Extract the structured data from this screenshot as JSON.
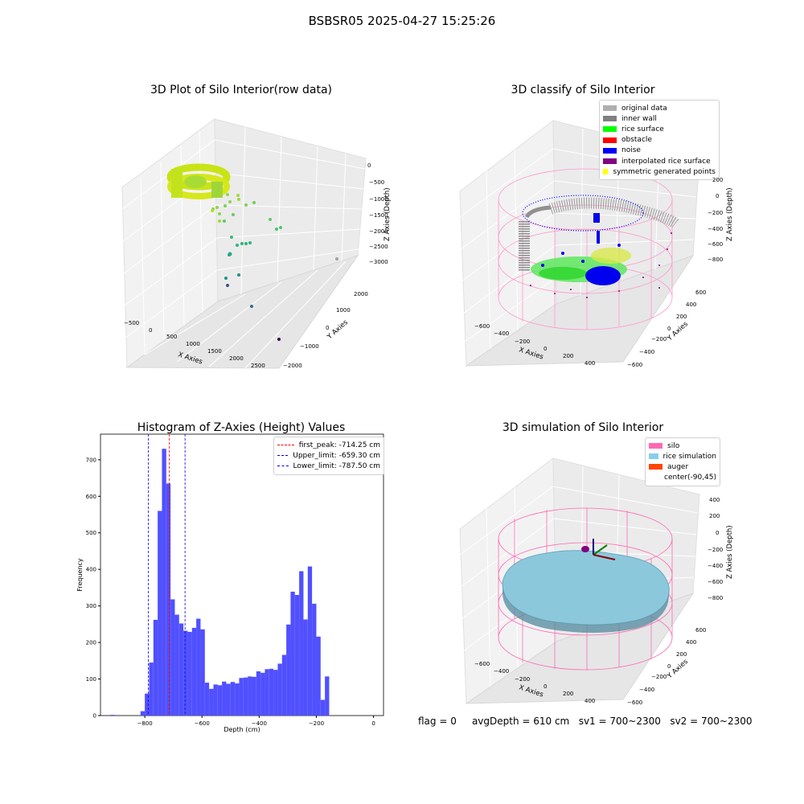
{
  "suptitle": "BSBSR05 2025-04-27 15:25:26",
  "panels": {
    "raw": {
      "title": "3D Plot of Silo Interior(row data)",
      "xlabel": "X Axies",
      "ylabel": "Y Axies",
      "zlabel": "Z Axies (Depth)",
      "xticks": [
        "−500",
        "0",
        "500",
        "1000",
        "1500",
        "2000",
        "2500"
      ],
      "yticks": [
        "2000",
        "1000",
        "0",
        "−1000",
        "−2000"
      ],
      "zticks": [
        "0",
        "−500",
        "−1000",
        "−1500",
        "−2000",
        "−2500",
        "−3000"
      ]
    },
    "classify": {
      "title": "3D classify of Silo Interior",
      "xlabel": "X Axies",
      "ylabel": "Y Axies",
      "zlabel": "Z Axies (Depth)",
      "xticks": [
        "−600",
        "−400",
        "−200",
        "0",
        "200",
        "400"
      ],
      "yticks": [
        "600",
        "400",
        "200",
        "0",
        "−200",
        "−400",
        "−600"
      ],
      "zticks": [
        "200",
        "0",
        "−200",
        "−400",
        "−600",
        "−800"
      ],
      "legend": [
        {
          "label": "original data",
          "color": "#b0b0b0"
        },
        {
          "label": "inner wall",
          "color": "#808080"
        },
        {
          "label": "rice surface",
          "color": "#00ff00"
        },
        {
          "label": "obstacle",
          "color": "#ff0000"
        },
        {
          "label": "noise",
          "color": "#0000ff"
        },
        {
          "label": "interpolated rice surface",
          "color": "#800080"
        },
        {
          "label": "symmetric generated points",
          "color": "#ffff00"
        }
      ]
    },
    "histogram": {
      "title": "Histogram of Z-Axies (Height) Values",
      "legend": [
        {
          "label": "first_peak: -714.25 cm",
          "color": "#ff0000"
        },
        {
          "label": "Upper_limit: -659.30 cm",
          "color": "#0000ff"
        },
        {
          "label": "Lower_limit: -787.50 cm",
          "color": "#0000ff"
        }
      ]
    },
    "simulation": {
      "title": "3D simulation of Silo Interior",
      "xlabel": "X Axies",
      "ylabel": "Y Axies",
      "zlabel": "Z Axies (Depth)",
      "xticks": [
        "−600",
        "−400",
        "−200",
        "0",
        "200",
        "400"
      ],
      "yticks": [
        "600",
        "400",
        "200",
        "0",
        "−200",
        "−400",
        "−600"
      ],
      "zticks": [
        "400",
        "200",
        "0",
        "−200",
        "−400",
        "−600",
        "−800"
      ],
      "legend": [
        {
          "label": "silo",
          "color": "#ff69b4"
        },
        {
          "label": "rice simulation",
          "color": "#87ceeb"
        },
        {
          "label": "auger",
          "color": "#ff4500"
        },
        {
          "label": "center(-90,45)",
          "color": "#ffffff"
        }
      ]
    }
  },
  "footer": {
    "flag": "flag = 0",
    "avg": "avgDepth = 610 cm",
    "sv1": "sv1 = 700~2300",
    "sv2": "sv2 = 700~2300"
  },
  "chart_data": [
    {
      "type": "scatter",
      "title": "3D Plot of Silo Interior(row data)",
      "xlabel": "X Axies",
      "ylabel": "Y Axies",
      "zlabel": "Z Axies (Depth)",
      "xlim": [
        -600,
        2700
      ],
      "ylim": [
        -2100,
        2300
      ],
      "zlim": [
        -3500,
        100
      ],
      "grid": true
    },
    {
      "type": "scatter",
      "title": "3D classify of Silo Interior",
      "xlabel": "X Axies",
      "ylabel": "Y Axies",
      "zlabel": "Z Axies (Depth)",
      "xlim": [
        -700,
        500
      ],
      "ylim": [
        -650,
        650
      ],
      "zlim": [
        -950,
        250
      ],
      "series": [
        {
          "name": "original data"
        },
        {
          "name": "inner wall"
        },
        {
          "name": "rice surface"
        },
        {
          "name": "obstacle"
        },
        {
          "name": "noise"
        },
        {
          "name": "interpolated rice surface"
        },
        {
          "name": "symmetric generated points"
        }
      ],
      "legend": "top-right",
      "grid": true
    },
    {
      "type": "bar",
      "title": "Histogram of Z-Axies (Height) Values",
      "xlabel": "Depth (cm)",
      "ylabel": "Frequency",
      "xlim": [
        -955,
        35
      ],
      "ylim": [
        0,
        770
      ],
      "xticks": [
        -800,
        -600,
        -400,
        -200,
        0
      ],
      "yticks": [
        0,
        100,
        200,
        300,
        400,
        500,
        600,
        700
      ],
      "bin_width": 15,
      "bins": [
        {
          "x": -920,
          "y": 2
        },
        {
          "x": -815,
          "y": 12
        },
        {
          "x": -800,
          "y": 60
        },
        {
          "x": -785,
          "y": 145
        },
        {
          "x": -770,
          "y": 262
        },
        {
          "x": -755,
          "y": 560
        },
        {
          "x": -740,
          "y": 730
        },
        {
          "x": -725,
          "y": 635
        },
        {
          "x": -710,
          "y": 318
        },
        {
          "x": -695,
          "y": 276
        },
        {
          "x": -680,
          "y": 252
        },
        {
          "x": -665,
          "y": 232
        },
        {
          "x": -650,
          "y": 229
        },
        {
          "x": -635,
          "y": 240
        },
        {
          "x": -620,
          "y": 265
        },
        {
          "x": -605,
          "y": 236
        },
        {
          "x": -590,
          "y": 90
        },
        {
          "x": -575,
          "y": 73
        },
        {
          "x": -560,
          "y": 85
        },
        {
          "x": -545,
          "y": 83
        },
        {
          "x": -530,
          "y": 93
        },
        {
          "x": -515,
          "y": 87
        },
        {
          "x": -500,
          "y": 92
        },
        {
          "x": -485,
          "y": 88
        },
        {
          "x": -470,
          "y": 103
        },
        {
          "x": -455,
          "y": 104
        },
        {
          "x": -440,
          "y": 107
        },
        {
          "x": -425,
          "y": 106
        },
        {
          "x": -410,
          "y": 121
        },
        {
          "x": -395,
          "y": 117
        },
        {
          "x": -380,
          "y": 127
        },
        {
          "x": -365,
          "y": 128
        },
        {
          "x": -350,
          "y": 125
        },
        {
          "x": -335,
          "y": 142
        },
        {
          "x": -320,
          "y": 166
        },
        {
          "x": -305,
          "y": 249
        },
        {
          "x": -290,
          "y": 339
        },
        {
          "x": -275,
          "y": 330
        },
        {
          "x": -260,
          "y": 395
        },
        {
          "x": -245,
          "y": 263
        },
        {
          "x": -230,
          "y": 408
        },
        {
          "x": -215,
          "y": 306
        },
        {
          "x": -200,
          "y": 216
        },
        {
          "x": -185,
          "y": 43
        },
        {
          "x": -170,
          "y": 107
        }
      ],
      "vlines": [
        {
          "label": "first_peak: -714.25 cm",
          "x": -714.25,
          "color": "#ff0000"
        },
        {
          "label": "Upper_limit: -659.30 cm",
          "x": -659.3,
          "color": "#0000ff"
        },
        {
          "label": "Lower_limit: -787.50 cm",
          "x": -787.5,
          "color": "#0000ff"
        }
      ],
      "bar_color": "#5050ff",
      "legend": "top-right"
    },
    {
      "type": "area",
      "title": "3D simulation of Silo Interior",
      "xlabel": "X Axies",
      "ylabel": "Y Axies",
      "zlabel": "Z Axies (Depth)",
      "xlim": [
        -700,
        500
      ],
      "ylim": [
        -650,
        650
      ],
      "zlim": [
        -950,
        450
      ],
      "series": [
        {
          "name": "silo"
        },
        {
          "name": "rice simulation"
        },
        {
          "name": "auger"
        },
        {
          "name": "center(-90,45)"
        }
      ],
      "legend": "top-right",
      "grid": true
    }
  ]
}
